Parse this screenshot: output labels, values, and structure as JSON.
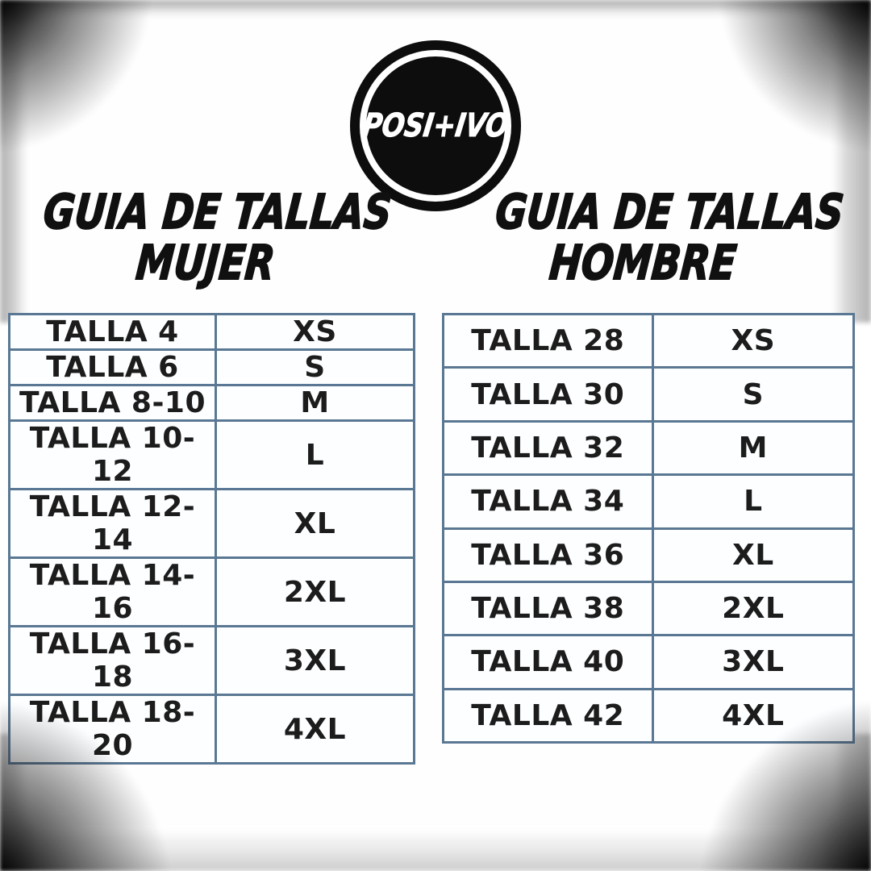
{
  "logo": {
    "brand": "POSI+IVO"
  },
  "headings": {
    "women": {
      "line1": "GUIA DE TALLAS",
      "line2": "MUJER"
    },
    "men": {
      "line1": "GUIA DE TALLAS",
      "line2": "HOMBRE"
    }
  },
  "size_tables": {
    "women": {
      "rows": [
        {
          "talla": "TALLA 4",
          "size": "XS"
        },
        {
          "talla": "TALLA 6",
          "size": "S"
        },
        {
          "talla": "TALLA 8-10",
          "size": "M"
        },
        {
          "talla": "TALLA 10-12",
          "size": "L"
        },
        {
          "talla": "TALLA 12-14",
          "size": "XL"
        },
        {
          "talla": "TALLA 14-16",
          "size": "2XL"
        },
        {
          "talla": "TALLA 16-18",
          "size": "3XL"
        },
        {
          "talla": "TALLA 18-20",
          "size": "4XL"
        }
      ]
    },
    "men": {
      "rows": [
        {
          "talla": "TALLA 28",
          "size": "XS"
        },
        {
          "talla": "TALLA 30",
          "size": "S"
        },
        {
          "talla": "TALLA 32",
          "size": "M"
        },
        {
          "talla": "TALLA 34",
          "size": "L"
        },
        {
          "talla": "TALLA 36",
          "size": "XL"
        },
        {
          "talla": "TALLA 38",
          "size": "2XL"
        },
        {
          "talla": "TALLA 40",
          "size": "3XL"
        },
        {
          "talla": "TALLA 42",
          "size": "4XL"
        }
      ]
    }
  },
  "colors": {
    "table_border": "#5a7893",
    "text": "#101010",
    "logo_bg": "#0d0d0d",
    "logo_text": "#ffffff"
  }
}
